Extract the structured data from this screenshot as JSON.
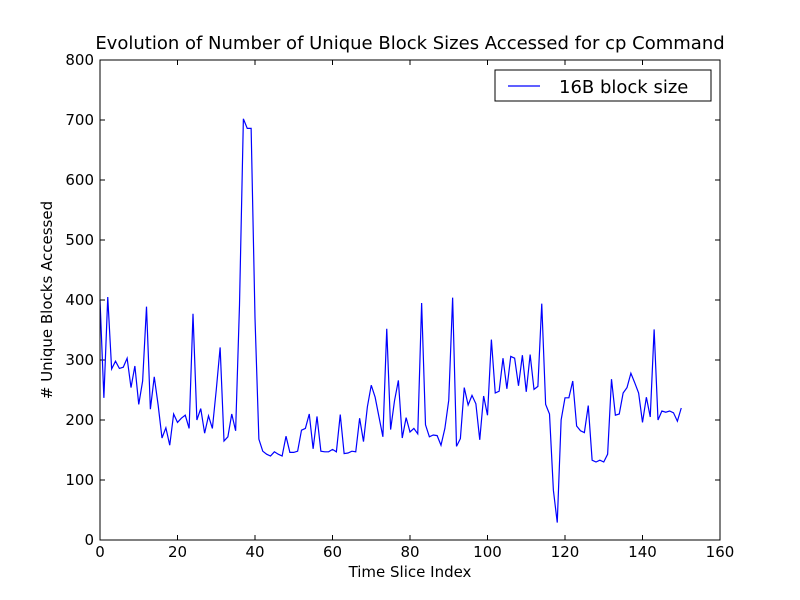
{
  "chart_data": {
    "type": "line",
    "title": "Evolution of Number of Unique Block Sizes Accessed for cp Command",
    "xlabel": "Time Slice Index",
    "ylabel": "# Unique Blocks Accessed",
    "xlim": [
      0,
      160
    ],
    "ylim": [
      0,
      800
    ],
    "xticks": [
      0,
      20,
      40,
      60,
      80,
      100,
      120,
      140,
      160
    ],
    "yticks": [
      0,
      100,
      200,
      300,
      400,
      500,
      600,
      700,
      800
    ],
    "xtick_labels": [
      "0",
      "20",
      "40",
      "60",
      "80",
      "100",
      "120",
      "140",
      "160"
    ],
    "ytick_labels": [
      "0",
      "100",
      "200",
      "300",
      "400",
      "500",
      "600",
      "700",
      "800"
    ],
    "grid": false,
    "legend": {
      "placement": "top-right"
    },
    "series": [
      {
        "name": "16B block size",
        "color": "#0000ff",
        "x": [
          0,
          1,
          2,
          3,
          4,
          5,
          6,
          7,
          8,
          9,
          10,
          11,
          12,
          13,
          14,
          15,
          16,
          17,
          18,
          19,
          20,
          21,
          22,
          23,
          24,
          25,
          26,
          27,
          28,
          29,
          30,
          31,
          32,
          33,
          34,
          35,
          36,
          37,
          38,
          39,
          40,
          41,
          42,
          43,
          44,
          45,
          46,
          47,
          48,
          49,
          50,
          51,
          52,
          53,
          54,
          55,
          56,
          57,
          58,
          59,
          60,
          61,
          62,
          63,
          64,
          65,
          66,
          67,
          68,
          69,
          70,
          71,
          72,
          73,
          74,
          75,
          76,
          77,
          78,
          79,
          80,
          81,
          82,
          83,
          84,
          85,
          86,
          87,
          88,
          89,
          90,
          91,
          92,
          93,
          94,
          95,
          96,
          97,
          98,
          99,
          100,
          101,
          102,
          103,
          104,
          105,
          106,
          107,
          108,
          109,
          110,
          111,
          112,
          113,
          114,
          115,
          116,
          117,
          118,
          119,
          120,
          121,
          122,
          123,
          124,
          125,
          126,
          127,
          128,
          129,
          130,
          131,
          132,
          133,
          134,
          135,
          136,
          137,
          138,
          139,
          140,
          141,
          142,
          143,
          144,
          145,
          146,
          147,
          148,
          149,
          150
        ],
        "values": [
          400,
          237,
          405,
          285,
          298,
          286,
          288,
          303,
          254,
          290,
          226,
          265,
          389,
          218,
          272,
          225,
          170,
          187,
          158,
          210,
          196,
          203,
          208,
          186,
          377,
          200,
          219,
          178,
          207,
          186,
          250,
          321,
          165,
          172,
          210,
          182,
          392,
          702,
          686,
          686,
          370,
          168,
          148,
          143,
          140,
          147,
          143,
          140,
          173,
          146,
          146,
          148,
          183,
          186,
          210,
          152,
          206,
          148,
          147,
          147,
          151,
          147,
          209,
          144,
          145,
          148,
          147,
          203,
          164,
          222,
          258,
          238,
          205,
          172,
          352,
          184,
          232,
          266,
          170,
          204,
          180,
          186,
          177,
          395,
          192,
          172,
          175,
          174,
          158,
          186,
          233,
          404,
          156,
          169,
          254,
          225,
          241,
          227,
          167,
          240,
          208,
          334,
          245,
          248,
          303,
          252,
          306,
          303,
          257,
          308,
          247,
          309,
          251,
          256,
          394,
          226,
          210,
          83,
          29,
          200,
          237,
          237,
          265,
          190,
          182,
          179,
          224,
          133,
          130,
          133,
          130,
          143,
          268,
          208,
          210,
          245,
          254,
          278,
          262,
          245,
          196,
          238,
          205,
          351,
          200,
          215,
          213,
          215,
          212,
          198,
          220
        ]
      }
    ]
  }
}
